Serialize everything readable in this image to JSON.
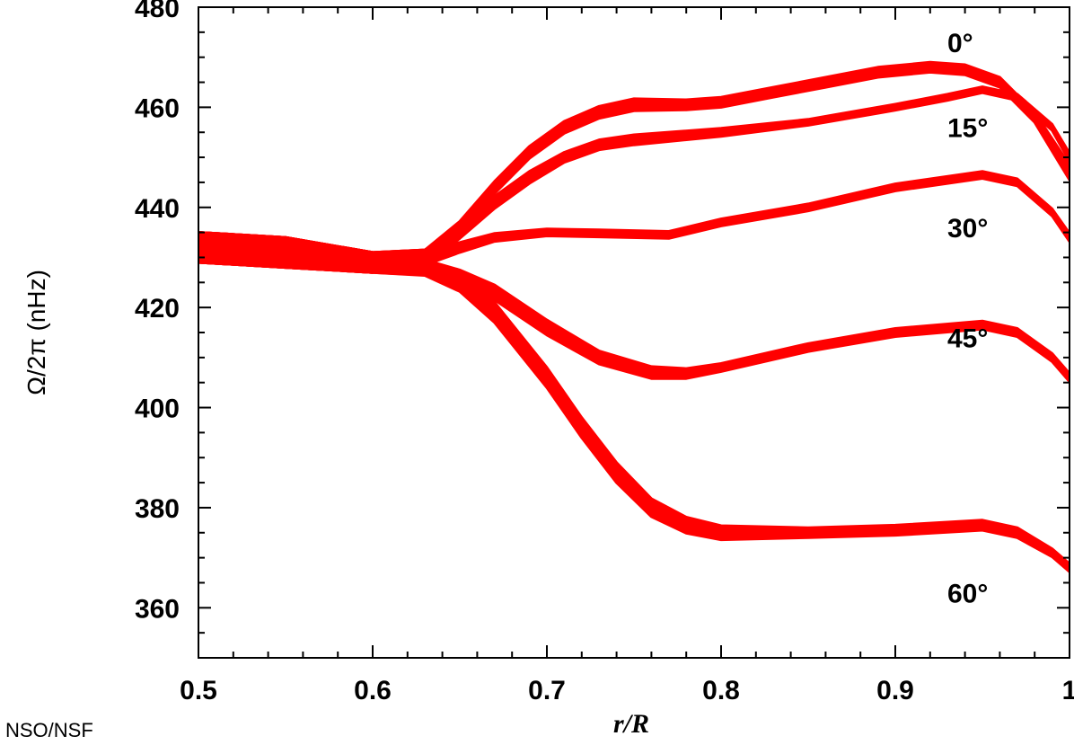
{
  "credit": "NSO/NSF",
  "chart_data": {
    "type": "line",
    "xlabel": "r/R",
    "ylabel": "Ω/2π (nHz)",
    "xlim": [
      0.5,
      1.0
    ],
    "ylim": [
      350,
      480
    ],
    "x_ticks": [
      0.5,
      0.6,
      0.7,
      0.8,
      0.9,
      1.0
    ],
    "x_tick_labels": [
      "0.5",
      "0.6",
      "0.7",
      "0.8",
      "0.9",
      "1"
    ],
    "y_ticks": [
      360,
      380,
      400,
      420,
      440,
      460,
      480
    ],
    "y_tick_labels": [
      "360",
      "380",
      "400",
      "420",
      "440",
      "460",
      "480"
    ],
    "grid": false,
    "line_color": "#ff0000",
    "series": [
      {
        "label": "0°",
        "label_value": 473,
        "x": [
          0.5,
          0.55,
          0.6,
          0.63,
          0.65,
          0.67,
          0.69,
          0.71,
          0.73,
          0.75,
          0.78,
          0.8,
          0.83,
          0.86,
          0.89,
          0.92,
          0.94,
          0.96,
          0.98,
          1.0
        ],
        "y": [
          432,
          431,
          429,
          430,
          436,
          444,
          451,
          456,
          459,
          460.5,
          460.5,
          461,
          463,
          465,
          467,
          468,
          467.5,
          465,
          458,
          447
        ],
        "band": [
          3,
          3,
          2,
          1.5,
          1.2,
          1.2,
          1.2,
          1.2,
          1.2,
          1.2,
          1,
          1,
          1,
          1,
          1,
          1,
          1,
          1,
          1,
          1.5
        ]
      },
      {
        "label": "15°",
        "label_value": 456,
        "x": [
          0.5,
          0.55,
          0.6,
          0.63,
          0.65,
          0.67,
          0.69,
          0.71,
          0.73,
          0.75,
          0.8,
          0.85,
          0.9,
          0.93,
          0.95,
          0.97,
          0.99,
          1.0
        ],
        "y": [
          432,
          431,
          429,
          430,
          435,
          441,
          446,
          450,
          452.5,
          453.5,
          455,
          457,
          460,
          462,
          463.5,
          462,
          456,
          450
        ],
        "band": [
          3,
          3,
          2,
          1.5,
          1.2,
          1.2,
          1.2,
          1,
          1,
          1,
          0.8,
          0.6,
          0.6,
          0.6,
          0.6,
          0.6,
          0.6,
          0.8
        ]
      },
      {
        "label": "30°",
        "label_value": 436,
        "x": [
          0.5,
          0.55,
          0.6,
          0.63,
          0.65,
          0.67,
          0.7,
          0.73,
          0.77,
          0.8,
          0.85,
          0.9,
          0.95,
          0.97,
          0.99,
          1.0
        ],
        "y": [
          432,
          431,
          429,
          430,
          432,
          434,
          435,
          434.8,
          434.5,
          437,
          440,
          444,
          446.5,
          445,
          439,
          434
        ],
        "band": [
          3,
          3,
          2,
          1.5,
          1,
          0.8,
          0.7,
          0.7,
          0.7,
          0.7,
          0.7,
          0.7,
          0.7,
          0.7,
          0.7,
          0.8
        ]
      },
      {
        "label": "45°",
        "label_value": 414,
        "x": [
          0.5,
          0.55,
          0.6,
          0.63,
          0.65,
          0.67,
          0.7,
          0.73,
          0.76,
          0.78,
          0.8,
          0.85,
          0.9,
          0.95,
          0.97,
          0.99,
          1.0
        ],
        "y": [
          432,
          431,
          429,
          428,
          426,
          423,
          416,
          410,
          407,
          406.8,
          408,
          412,
          415,
          416.5,
          415,
          410,
          406
        ],
        "band": [
          3,
          3,
          2,
          1.5,
          1.5,
          1.5,
          1.5,
          1.3,
          1.2,
          1,
          0.8,
          0.8,
          0.8,
          0.8,
          0.8,
          0.8,
          0.8
        ]
      },
      {
        "label": "60°",
        "label_value": 363,
        "x": [
          0.5,
          0.55,
          0.6,
          0.63,
          0.65,
          0.67,
          0.7,
          0.72,
          0.74,
          0.76,
          0.78,
          0.8,
          0.85,
          0.9,
          0.95,
          0.97,
          0.99,
          1.0
        ],
        "y": [
          432,
          431,
          429,
          428,
          425,
          419,
          406,
          396,
          387,
          380,
          376.5,
          375,
          375,
          375.5,
          376.5,
          375,
          371,
          368
        ],
        "band": [
          3,
          3,
          2,
          1.6,
          1.8,
          2,
          2,
          2,
          2,
          1.8,
          1.6,
          1.4,
          1,
          1,
          1,
          1,
          0.8,
          0.8
        ]
      }
    ]
  }
}
